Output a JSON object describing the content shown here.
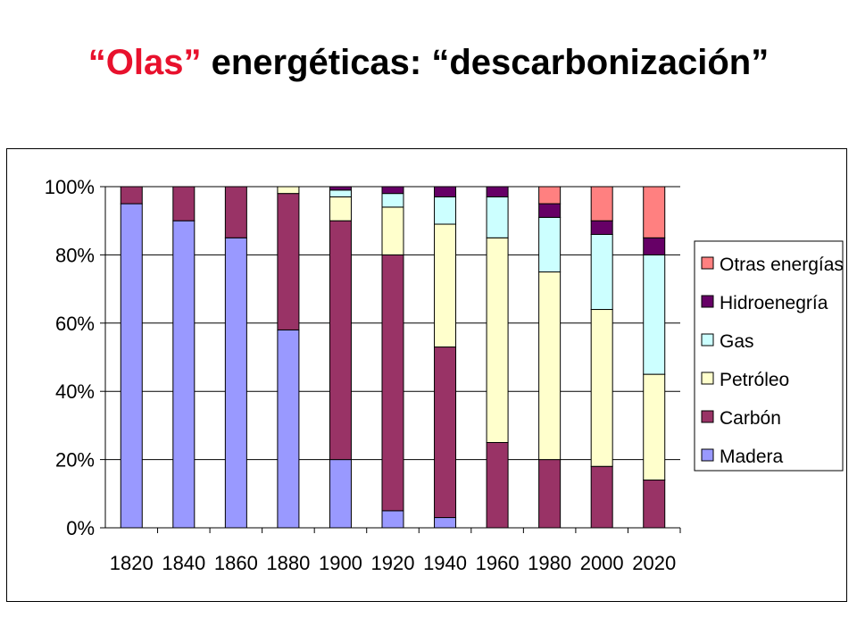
{
  "title": {
    "part1": "“Olas”",
    "part2": " energéticas: “descarbonización”"
  },
  "chart_data": {
    "type": "bar",
    "stacked": true,
    "percent": true,
    "categories": [
      "1820",
      "1840",
      "1860",
      "1880",
      "1900",
      "1920",
      "1940",
      "1960",
      "1980",
      "2000",
      "2020"
    ],
    "ylim": [
      0,
      100
    ],
    "yticks": [
      "0%",
      "20%",
      "40%",
      "60%",
      "80%",
      "100%"
    ],
    "grid": true,
    "legend_position": "right",
    "series": [
      {
        "name": "Madera",
        "color": "#9999ff",
        "values": [
          95,
          90,
          85,
          58,
          20,
          5,
          3,
          0,
          0,
          0,
          0
        ]
      },
      {
        "name": "Carbón",
        "color": "#993366",
        "values": [
          5,
          10,
          15,
          40,
          70,
          75,
          50,
          25,
          20,
          18,
          14
        ]
      },
      {
        "name": "Petróleo",
        "color": "#ffffcc",
        "values": [
          0,
          0,
          0,
          2,
          7,
          14,
          36,
          60,
          55,
          46,
          31
        ]
      },
      {
        "name": "Gas",
        "color": "#ccffff",
        "values": [
          0,
          0,
          0,
          0,
          2,
          4,
          8,
          12,
          16,
          22,
          35
        ]
      },
      {
        "name": "Hidroenegría",
        "color": "#660066",
        "values": [
          0,
          0,
          0,
          0,
          1,
          2,
          3,
          3,
          4,
          4,
          5
        ]
      },
      {
        "name": "Otras energías",
        "color": "#ff8080",
        "values": [
          0,
          0,
          0,
          0,
          0,
          0,
          0,
          0,
          5,
          10,
          15
        ]
      }
    ]
  }
}
